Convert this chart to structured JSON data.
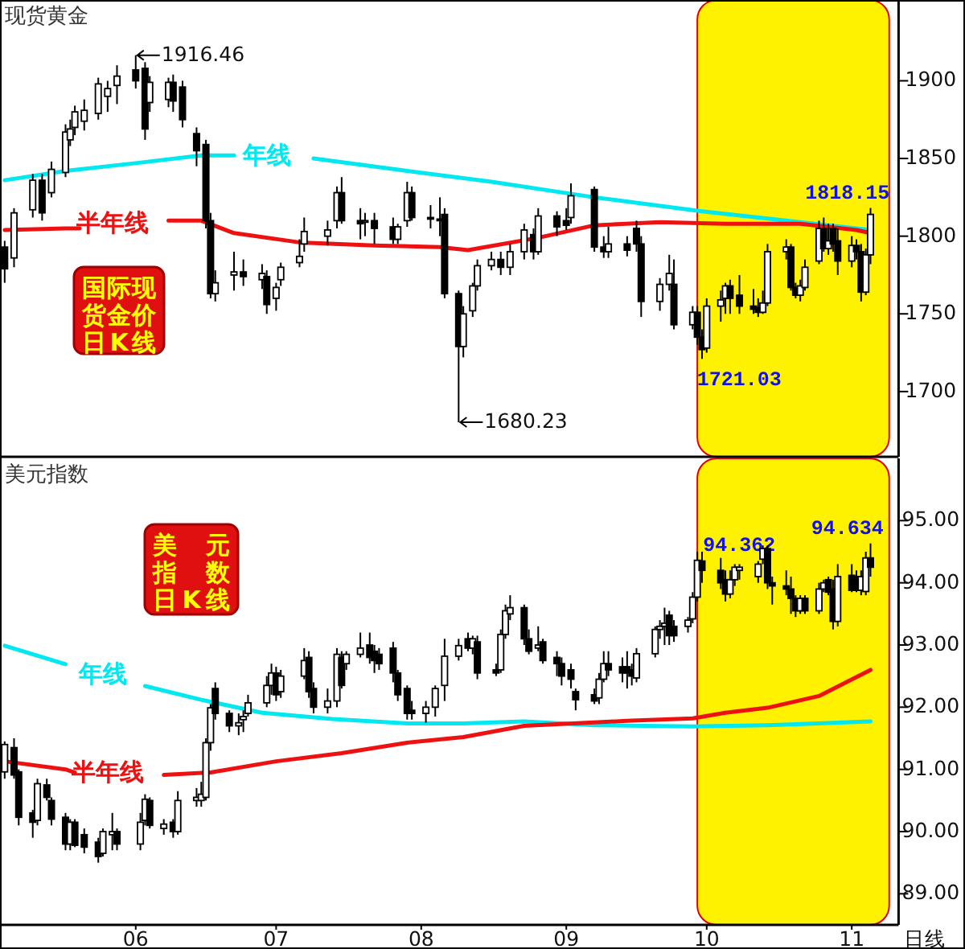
{
  "chart_data": [
    {
      "type": "candlestick",
      "title": "现货黄金",
      "xlim": [
        "--05-03",
        "--11-11"
      ],
      "ylim": [
        1658,
        1952
      ],
      "yticks": [
        1700,
        1750,
        1800,
        1850,
        1900
      ],
      "tick_labels": "y",
      "bands": [
        {
          "axis": "x",
          "from": "--09-29",
          "to": "--11-09",
          "color": "#fff200"
        }
      ],
      "annotations": [
        "国际现货金价日K线",
        {
          "text": "1916.46",
          "x": "--06-01",
          "y": 1916.46
        },
        {
          "text": "1680.23",
          "x": "--08-09",
          "y": 1680.23
        },
        {
          "text": "1721.03",
          "x": "--09-30",
          "y": 1721.03
        },
        {
          "text": "1818.15",
          "x": "--11-05",
          "y": 1818.15
        }
      ],
      "x": [
        "--05-04",
        "--05-06",
        "--05-10",
        "--05-12",
        "--05-14",
        "--05-17",
        "--05-18",
        "--05-19",
        "--05-21",
        "--05-24",
        "--05-26",
        "--05-28",
        "--06-01",
        "--06-03",
        "--06-04",
        "--06-08",
        "--06-09",
        "--06-11",
        "--06-14",
        "--06-16",
        "--06-17",
        "--06-18",
        "--06-22",
        "--06-24",
        "--06-28",
        "--06-29",
        "--07-01",
        "--07-02",
        "--07-06",
        "--07-07",
        "--07-12",
        "--07-14",
        "--07-15",
        "--07-19",
        "--07-20",
        "--07-22",
        "--07-26",
        "--07-27",
        "--07-29",
        "--07-30",
        "--08-03",
        "--08-05",
        "--08-06",
        "--08-09",
        "--08-10",
        "--08-12",
        "--08-13",
        "--08-16",
        "--08-18",
        "--08-20",
        "--08-23",
        "--08-25",
        "--08-26",
        "--08-30",
        "--09-01",
        "--09-02",
        "--09-07",
        "--09-09",
        "--09-10",
        "--09-14",
        "--09-16",
        "--09-17",
        "--09-21",
        "--09-23",
        "--09-24",
        "--09-28",
        "--09-29",
        "--09-30",
        "--10-01",
        "--10-04",
        "--10-05",
        "--10-06",
        "--10-08",
        "--10-11",
        "--10-12",
        "--10-13",
        "--10-14",
        "--10-18",
        "--10-19",
        "--10-20",
        "--10-21",
        "--10-22",
        "--10-25",
        "--10-26",
        "--10-27",
        "--10-28",
        "--10-29",
        "--11-01",
        "--11-02",
        "--11-03",
        "--11-04",
        "--11-05"
      ],
      "ohlc": [
        [
          1793,
          1797,
          1770,
          1779
        ],
        [
          1786,
          1818,
          1780,
          1815
        ],
        [
          1817,
          1840,
          1812,
          1836
        ],
        [
          1836,
          1840,
          1810,
          1815
        ],
        [
          1828,
          1848,
          1825,
          1843
        ],
        [
          1841,
          1872,
          1838,
          1867
        ],
        [
          1862,
          1875,
          1858,
          1869
        ],
        [
          1870,
          1884,
          1865,
          1880
        ],
        [
          1874,
          1888,
          1868,
          1881
        ],
        [
          1879,
          1902,
          1875,
          1898
        ],
        [
          1890,
          1900,
          1880,
          1895
        ],
        [
          1897,
          1910,
          1885,
          1903
        ],
        [
          1907,
          1916.46,
          1895,
          1900
        ],
        [
          1908,
          1912,
          1862,
          1869
        ],
        [
          1886,
          1903,
          1880,
          1899
        ],
        [
          1888,
          1902,
          1883,
          1899
        ],
        [
          1899,
          1904,
          1880,
          1887
        ],
        [
          1896,
          1900,
          1870,
          1875
        ],
        [
          1866,
          1870,
          1845,
          1855
        ],
        [
          1859,
          1862,
          1805,
          1810
        ],
        [
          1810,
          1815,
          1760,
          1763
        ],
        [
          1763,
          1778,
          1758,
          1770
        ],
        [
          1775,
          1790,
          1765,
          1777
        ],
        [
          1777,
          1785,
          1768,
          1774
        ],
        [
          1772,
          1782,
          1766,
          1776
        ],
        [
          1774,
          1778,
          1750,
          1756
        ],
        [
          1760,
          1770,
          1752,
          1767
        ],
        [
          1772,
          1783,
          1768,
          1780
        ],
        [
          1783,
          1798,
          1780,
          1787
        ],
        [
          1795,
          1812,
          1790,
          1803
        ],
        [
          1800,
          1810,
          1794,
          1804
        ],
        [
          1810,
          1832,
          1805,
          1828
        ],
        [
          1828,
          1838,
          1808,
          1810
        ],
        [
          1810,
          1818,
          1798,
          1808
        ],
        [
          1809,
          1815,
          1800,
          1810
        ],
        [
          1810,
          1815,
          1795,
          1805
        ],
        [
          1806,
          1812,
          1795,
          1798
        ],
        [
          1798,
          1808,
          1795,
          1806
        ],
        [
          1810,
          1835,
          1806,
          1828
        ],
        [
          1828,
          1832,
          1810,
          1812
        ],
        [
          1812,
          1820,
          1805,
          1811
        ],
        [
          1811,
          1825,
          1800,
          1810
        ],
        [
          1814,
          1818,
          1760,
          1763
        ],
        [
          1763,
          1765,
          1680.23,
          1729
        ],
        [
          1729,
          1755,
          1722,
          1750
        ],
        [
          1752,
          1770,
          1748,
          1768
        ],
        [
          1768,
          1785,
          1765,
          1781
        ],
        [
          1781,
          1790,
          1778,
          1785
        ],
        [
          1785,
          1790,
          1775,
          1780
        ],
        [
          1780,
          1795,
          1775,
          1790
        ],
        [
          1790,
          1808,
          1785,
          1804
        ],
        [
          1801,
          1805,
          1785,
          1790
        ],
        [
          1790,
          1818,
          1788,
          1813
        ],
        [
          1813,
          1816,
          1800,
          1806
        ],
        [
          1810,
          1818,
          1804,
          1807
        ],
        [
          1812,
          1834,
          1808,
          1826
        ],
        [
          1830,
          1832,
          1790,
          1793
        ],
        [
          1793,
          1800,
          1786,
          1790
        ],
        [
          1790,
          1806,
          1786,
          1795
        ],
        [
          1795,
          1800,
          1787,
          1791
        ],
        [
          1805,
          1810,
          1790,
          1795
        ],
        [
          1795,
          1800,
          1748,
          1758
        ],
        [
          1758,
          1773,
          1752,
          1769
        ],
        [
          1769,
          1788,
          1765,
          1776
        ],
        [
          1769,
          1785,
          1740,
          1743
        ],
        [
          1743,
          1755,
          1740,
          1751
        ],
        [
          1751,
          1755,
          1730,
          1735
        ],
        [
          1735,
          1740,
          1721.03,
          1727
        ],
        [
          1728,
          1760,
          1725,
          1755
        ],
        [
          1755,
          1765,
          1745,
          1759
        ],
        [
          1760,
          1770,
          1750,
          1768
        ],
        [
          1768,
          1772,
          1750,
          1760
        ],
        [
          1762,
          1775,
          1750,
          1755
        ],
        [
          1755,
          1766,
          1750,
          1753
        ],
        [
          1754,
          1760,
          1748,
          1751
        ],
        [
          1751,
          1765,
          1750,
          1757
        ],
        [
          1757,
          1795,
          1755,
          1790
        ],
        [
          1790,
          1798,
          1785,
          1793
        ],
        [
          1793,
          1795,
          1765,
          1767
        ],
        [
          1767,
          1770,
          1760,
          1762
        ],
        [
          1762,
          1772,
          1758,
          1768
        ],
        [
          1767,
          1785,
          1765,
          1780
        ],
        [
          1784,
          1810,
          1782,
          1805
        ],
        [
          1805,
          1812,
          1790,
          1792
        ],
        [
          1792,
          1808,
          1788,
          1797
        ],
        [
          1805,
          1808,
          1790,
          1795
        ],
        [
          1797,
          1805,
          1775,
          1784
        ],
        [
          1784,
          1800,
          1780,
          1794
        ],
        [
          1794,
          1798,
          1785,
          1790
        ],
        [
          1790,
          1795,
          1758,
          1764
        ],
        [
          1764,
          1792,
          1762,
          1788
        ],
        [
          1788,
          1818.15,
          1782,
          1814
        ]
      ],
      "series": [
        {
          "type": "line",
          "name": "年线",
          "color": "#00e8f0",
          "x": [
            "--05-04",
            "--05-17",
            "--06-01",
            "--06-15",
            "--06-22",
            "--06-29",
            "--07-09",
            "--07-29",
            "--08-16",
            "--09-07",
            "--09-30",
            "--10-21",
            "--11-05"
          ],
          "values": [
            1836,
            1842,
            1847,
            1852,
            1852,
            null,
            1850,
            1842,
            1835,
            1825,
            1816,
            1809,
            1804
          ]
        },
        {
          "type": "line",
          "name": "半年线",
          "color": "#ee1111",
          "x": [
            "--05-04",
            "--05-17",
            "--05-20",
            "--05-27",
            "--06-08",
            "--06-15",
            "--06-22",
            "--07-06",
            "--07-22",
            "--08-05",
            "--08-11",
            "--08-26",
            "--09-07",
            "--09-21",
            "--10-05",
            "--10-21",
            "--11-02",
            "--11-05"
          ],
          "values": [
            1804,
            1805,
            1805,
            null,
            1810,
            1810,
            1802,
            1796,
            1794,
            1793,
            1791,
            1799,
            1807,
            1809,
            1808,
            1808,
            1804,
            1802
          ]
        }
      ]
    },
    {
      "type": "candlestick",
      "title": "美元指数",
      "xlim": [
        "--05-03",
        "--11-11"
      ],
      "ylim": [
        88.5,
        96.0
      ],
      "yticks": [
        {
          "value": 89,
          "label": "89.00"
        },
        {
          "value": 90,
          "label": "90.00"
        },
        {
          "value": 91,
          "label": "91.00"
        },
        {
          "value": 92,
          "label": "92.00"
        },
        {
          "value": 93,
          "label": "93.00"
        },
        {
          "value": 94,
          "label": "94.00"
        },
        {
          "value": 95,
          "label": "95.00"
        }
      ],
      "xticks": [
        {
          "value": "--06-01",
          "label": "06"
        },
        {
          "value": "--07-01",
          "label": "07"
        },
        {
          "value": "--08-01",
          "label": "08"
        },
        {
          "value": "--09-01",
          "label": "09"
        },
        {
          "value": "--10-01",
          "label": "10"
        },
        {
          "value": "--11-01",
          "label": "11"
        }
      ],
      "bands": [
        {
          "axis": "x",
          "from": "--09-29",
          "to": "--11-09",
          "color": "#fff200"
        }
      ],
      "annotations": [
        "美元指数日K线",
        "日线",
        {
          "text": "94.362",
          "x": "--09-29",
          "y": 94.362
        },
        {
          "text": "94.634",
          "x": "--11-05",
          "y": 94.634
        }
      ],
      "x": [
        "--05-04",
        "--05-06",
        "--05-07",
        "--05-10",
        "--05-11",
        "--05-13",
        "--05-14",
        "--05-17",
        "--05-18",
        "--05-19",
        "--05-21",
        "--05-24",
        "--05-25",
        "--05-27",
        "--05-28",
        "--06-02",
        "--06-03",
        "--06-04",
        "--06-07",
        "--06-09",
        "--06-10",
        "--06-14",
        "--06-15",
        "--06-16",
        "--06-17",
        "--06-18",
        "--06-21",
        "--06-23",
        "--06-24",
        "--06-25",
        "--06-29",
        "--06-30",
        "--07-01",
        "--07-02",
        "--07-07",
        "--07-08",
        "--07-09",
        "--07-12",
        "--07-14",
        "--07-15",
        "--07-16",
        "--07-19",
        "--07-21",
        "--07-22",
        "--07-23",
        "--07-26",
        "--07-27",
        "--07-29",
        "--07-30",
        "--08-02",
        "--08-04",
        "--08-06",
        "--08-09",
        "--08-11",
        "--08-12",
        "--08-13",
        "--08-17",
        "--08-18",
        "--08-19",
        "--08-20",
        "--08-23",
        "--08-24",
        "--08-26",
        "--08-27",
        "--08-30",
        "--08-31",
        "--09-02",
        "--09-03",
        "--09-07",
        "--09-08",
        "--09-09",
        "--09-10",
        "--09-13",
        "--09-14",
        "--09-15",
        "--09-16",
        "--09-20",
        "--09-21",
        "--09-22",
        "--09-23",
        "--09-24",
        "--09-27",
        "--09-28",
        "--09-29",
        "--09-30",
        "--10-04",
        "--10-05",
        "--10-06",
        "--10-07",
        "--10-08",
        "--10-12",
        "--10-13",
        "--10-14",
        "--10-15",
        "--10-18",
        "--10-19",
        "--10-20",
        "--10-21",
        "--10-22",
        "--10-25",
        "--10-26",
        "--10-27",
        "--10-28",
        "--10-29",
        "--11-01",
        "--11-02",
        "--11-03",
        "--11-04",
        "--11-05"
      ],
      "ohlc": [
        [
          90.96,
          91.45,
          90.85,
          91.4
        ],
        [
          91.35,
          91.5,
          90.85,
          90.91
        ],
        [
          90.96,
          91.0,
          90.1,
          90.23
        ],
        [
          90.3,
          90.35,
          89.9,
          90.15
        ],
        [
          90.18,
          90.85,
          90.1,
          90.77
        ],
        [
          90.75,
          90.85,
          90.5,
          90.55
        ],
        [
          90.5,
          90.55,
          90.1,
          90.2
        ],
        [
          90.23,
          90.3,
          89.7,
          89.8
        ],
        [
          89.8,
          90.2,
          89.7,
          90.15
        ],
        [
          90.15,
          90.2,
          89.75,
          89.78
        ],
        [
          89.95,
          90.05,
          89.65,
          89.75
        ],
        [
          89.83,
          89.9,
          89.5,
          89.6
        ],
        [
          89.65,
          90.05,
          89.6,
          90.0
        ],
        [
          89.95,
          90.3,
          89.7,
          90.0
        ],
        [
          90.0,
          90.05,
          89.7,
          89.8
        ],
        [
          89.8,
          90.3,
          89.7,
          90.15
        ],
        [
          90.18,
          90.6,
          90.1,
          90.52
        ],
        [
          90.5,
          90.55,
          90.05,
          90.1
        ],
        [
          90.05,
          90.2,
          89.95,
          90.12
        ],
        [
          90.15,
          90.2,
          89.9,
          90.0
        ],
        [
          90.0,
          90.65,
          89.95,
          90.5
        ],
        [
          90.5,
          90.7,
          90.4,
          90.55
        ],
        [
          90.5,
          90.8,
          90.4,
          90.6
        ],
        [
          90.55,
          91.5,
          90.5,
          91.43
        ],
        [
          91.43,
          92.05,
          91.3,
          91.99
        ],
        [
          92.3,
          92.4,
          91.8,
          91.9
        ],
        [
          91.9,
          91.95,
          91.6,
          91.7
        ],
        [
          91.7,
          91.9,
          91.55,
          91.75
        ],
        [
          91.8,
          91.95,
          91.6,
          91.85
        ],
        [
          91.9,
          92.2,
          91.85,
          92.07
        ],
        [
          92.07,
          92.5,
          92.0,
          92.35
        ],
        [
          92.35,
          92.7,
          92.2,
          92.55
        ],
        [
          92.55,
          92.65,
          92.1,
          92.2
        ],
        [
          92.25,
          92.6,
          92.15,
          92.5
        ],
        [
          92.5,
          92.95,
          92.45,
          92.75
        ],
        [
          92.8,
          92.9,
          92.15,
          92.25
        ],
        [
          92.3,
          92.4,
          91.9,
          92.0
        ],
        [
          92.0,
          92.3,
          91.9,
          92.1
        ],
        [
          92.1,
          92.95,
          92.0,
          92.85
        ],
        [
          92.8,
          92.9,
          92.3,
          92.35
        ],
        [
          92.7,
          92.9,
          92.6,
          92.85
        ],
        [
          92.85,
          93.2,
          92.8,
          92.95
        ],
        [
          93.0,
          93.2,
          92.7,
          92.8
        ],
        [
          92.9,
          93.0,
          92.55,
          92.75
        ],
        [
          92.85,
          92.95,
          92.6,
          92.7
        ],
        [
          92.95,
          93.05,
          92.4,
          92.55
        ],
        [
          92.55,
          92.6,
          92.1,
          92.2
        ],
        [
          92.3,
          92.35,
          91.8,
          91.9
        ],
        [
          91.95,
          92.1,
          91.8,
          91.9
        ],
        [
          91.9,
          92.1,
          91.75,
          92.0
        ],
        [
          92.0,
          92.35,
          91.85,
          92.3
        ],
        [
          92.35,
          93.1,
          92.1,
          92.82
        ],
        [
          92.82,
          93.1,
          92.75,
          92.99
        ],
        [
          93.1,
          93.2,
          92.9,
          92.95
        ],
        [
          92.95,
          93.15,
          92.85,
          93.1
        ],
        [
          93.05,
          93.15,
          92.45,
          92.55
        ],
        [
          92.6,
          92.7,
          92.5,
          92.55
        ],
        [
          92.6,
          93.25,
          92.55,
          93.17
        ],
        [
          93.17,
          93.65,
          93.1,
          93.55
        ],
        [
          93.5,
          93.8,
          93.4,
          93.6
        ],
        [
          93.6,
          93.65,
          93.0,
          93.1
        ],
        [
          93.1,
          93.25,
          92.85,
          92.9
        ],
        [
          92.95,
          93.3,
          92.9,
          93.0
        ],
        [
          93.05,
          93.1,
          92.7,
          92.75
        ],
        [
          92.8,
          92.9,
          92.5,
          92.7
        ],
        [
          92.7,
          92.8,
          92.35,
          92.5
        ],
        [
          92.6,
          92.7,
          92.3,
          92.45
        ],
        [
          92.25,
          92.3,
          91.95,
          92.12
        ],
        [
          92.2,
          92.3,
          92.05,
          92.1
        ],
        [
          92.15,
          92.55,
          92.05,
          92.45
        ],
        [
          92.45,
          92.9,
          92.4,
          92.7
        ],
        [
          92.7,
          92.9,
          92.5,
          92.6
        ],
        [
          92.65,
          92.8,
          92.4,
          92.55
        ],
        [
          92.65,
          92.9,
          92.3,
          92.55
        ],
        [
          92.6,
          92.7,
          92.35,
          92.5
        ],
        [
          92.47,
          92.95,
          92.4,
          92.86
        ],
        [
          92.86,
          93.3,
          92.8,
          93.25
        ],
        [
          93.25,
          93.4,
          93.1,
          93.3
        ],
        [
          93.3,
          93.6,
          93.0,
          93.35
        ],
        [
          93.48,
          93.55,
          93.0,
          93.15
        ],
        [
          93.3,
          93.4,
          93.05,
          93.15
        ],
        [
          93.3,
          93.45,
          93.2,
          93.4
        ],
        [
          93.42,
          93.85,
          93.35,
          93.77
        ],
        [
          93.77,
          94.5,
          93.7,
          94.362
        ],
        [
          94.35,
          94.5,
          94.0,
          94.2
        ],
        [
          94.2,
          94.4,
          93.9,
          94.0
        ],
        [
          94.05,
          94.2,
          93.7,
          93.82
        ],
        [
          93.82,
          94.2,
          93.75,
          94.05
        ],
        [
          94.05,
          94.3,
          93.95,
          94.25
        ],
        [
          94.2,
          94.3,
          94.05,
          94.25
        ],
        [
          94.1,
          94.35,
          94.0,
          94.3
        ],
        [
          94.38,
          94.6,
          94.3,
          94.55
        ],
        [
          94.55,
          94.6,
          93.9,
          94.0
        ],
        [
          94.0,
          94.1,
          93.65,
          93.95
        ],
        [
          93.95,
          94.2,
          93.8,
          93.9
        ],
        [
          93.9,
          94.1,
          93.5,
          93.75
        ],
        [
          93.75,
          93.8,
          93.45,
          93.55
        ],
        [
          93.55,
          93.8,
          93.5,
          93.75
        ],
        [
          93.75,
          93.8,
          93.5,
          93.55
        ],
        [
          93.55,
          94.0,
          93.5,
          93.9
        ],
        [
          93.9,
          94.05,
          93.85,
          94.0
        ],
        [
          94.05,
          94.1,
          93.8,
          93.85
        ],
        [
          93.9,
          94.05,
          93.25,
          93.38
        ],
        [
          93.38,
          94.3,
          93.3,
          94.1
        ],
        [
          94.12,
          94.3,
          93.85,
          93.88
        ],
        [
          94.1,
          94.2,
          93.85,
          93.88
        ],
        [
          93.88,
          94.2,
          93.8,
          94.1
        ],
        [
          93.86,
          94.5,
          93.8,
          94.4
        ],
        [
          94.4,
          94.634,
          94.1,
          94.25
        ]
      ],
      "series": [
        {
          "type": "line",
          "name": "年线",
          "color": "#00e8f0",
          "x": [
            "--05-04",
            "--05-17",
            "--05-25",
            "--06-03",
            "--06-15",
            "--06-28",
            "--07-13",
            "--07-29",
            "--08-10",
            "--08-23",
            "--09-07",
            "--09-28",
            "--10-14",
            "--10-25",
            "--11-05"
          ],
          "values": [
            92.99,
            92.69,
            null,
            92.34,
            92.12,
            91.91,
            91.81,
            91.74,
            91.74,
            91.77,
            91.71,
            91.69,
            91.71,
            91.74,
            91.77
          ]
        },
        {
          "type": "line",
          "name": "半年线",
          "color": "#ee1111",
          "x": [
            "--05-04",
            "--05-17",
            "--05-19",
            "--05-26",
            "--06-07",
            "--06-17",
            "--07-01",
            "--07-15",
            "--07-29",
            "--08-10",
            "--08-23",
            "--09-14",
            "--09-28",
            "--10-05",
            "--10-14",
            "--10-25",
            "--11-05"
          ],
          "values": [
            91.13,
            91.0,
            90.95,
            null,
            90.91,
            90.95,
            91.13,
            91.26,
            91.43,
            91.52,
            91.7,
            91.78,
            91.82,
            91.91,
            91.99,
            92.18,
            92.6
          ]
        }
      ]
    }
  ]
}
